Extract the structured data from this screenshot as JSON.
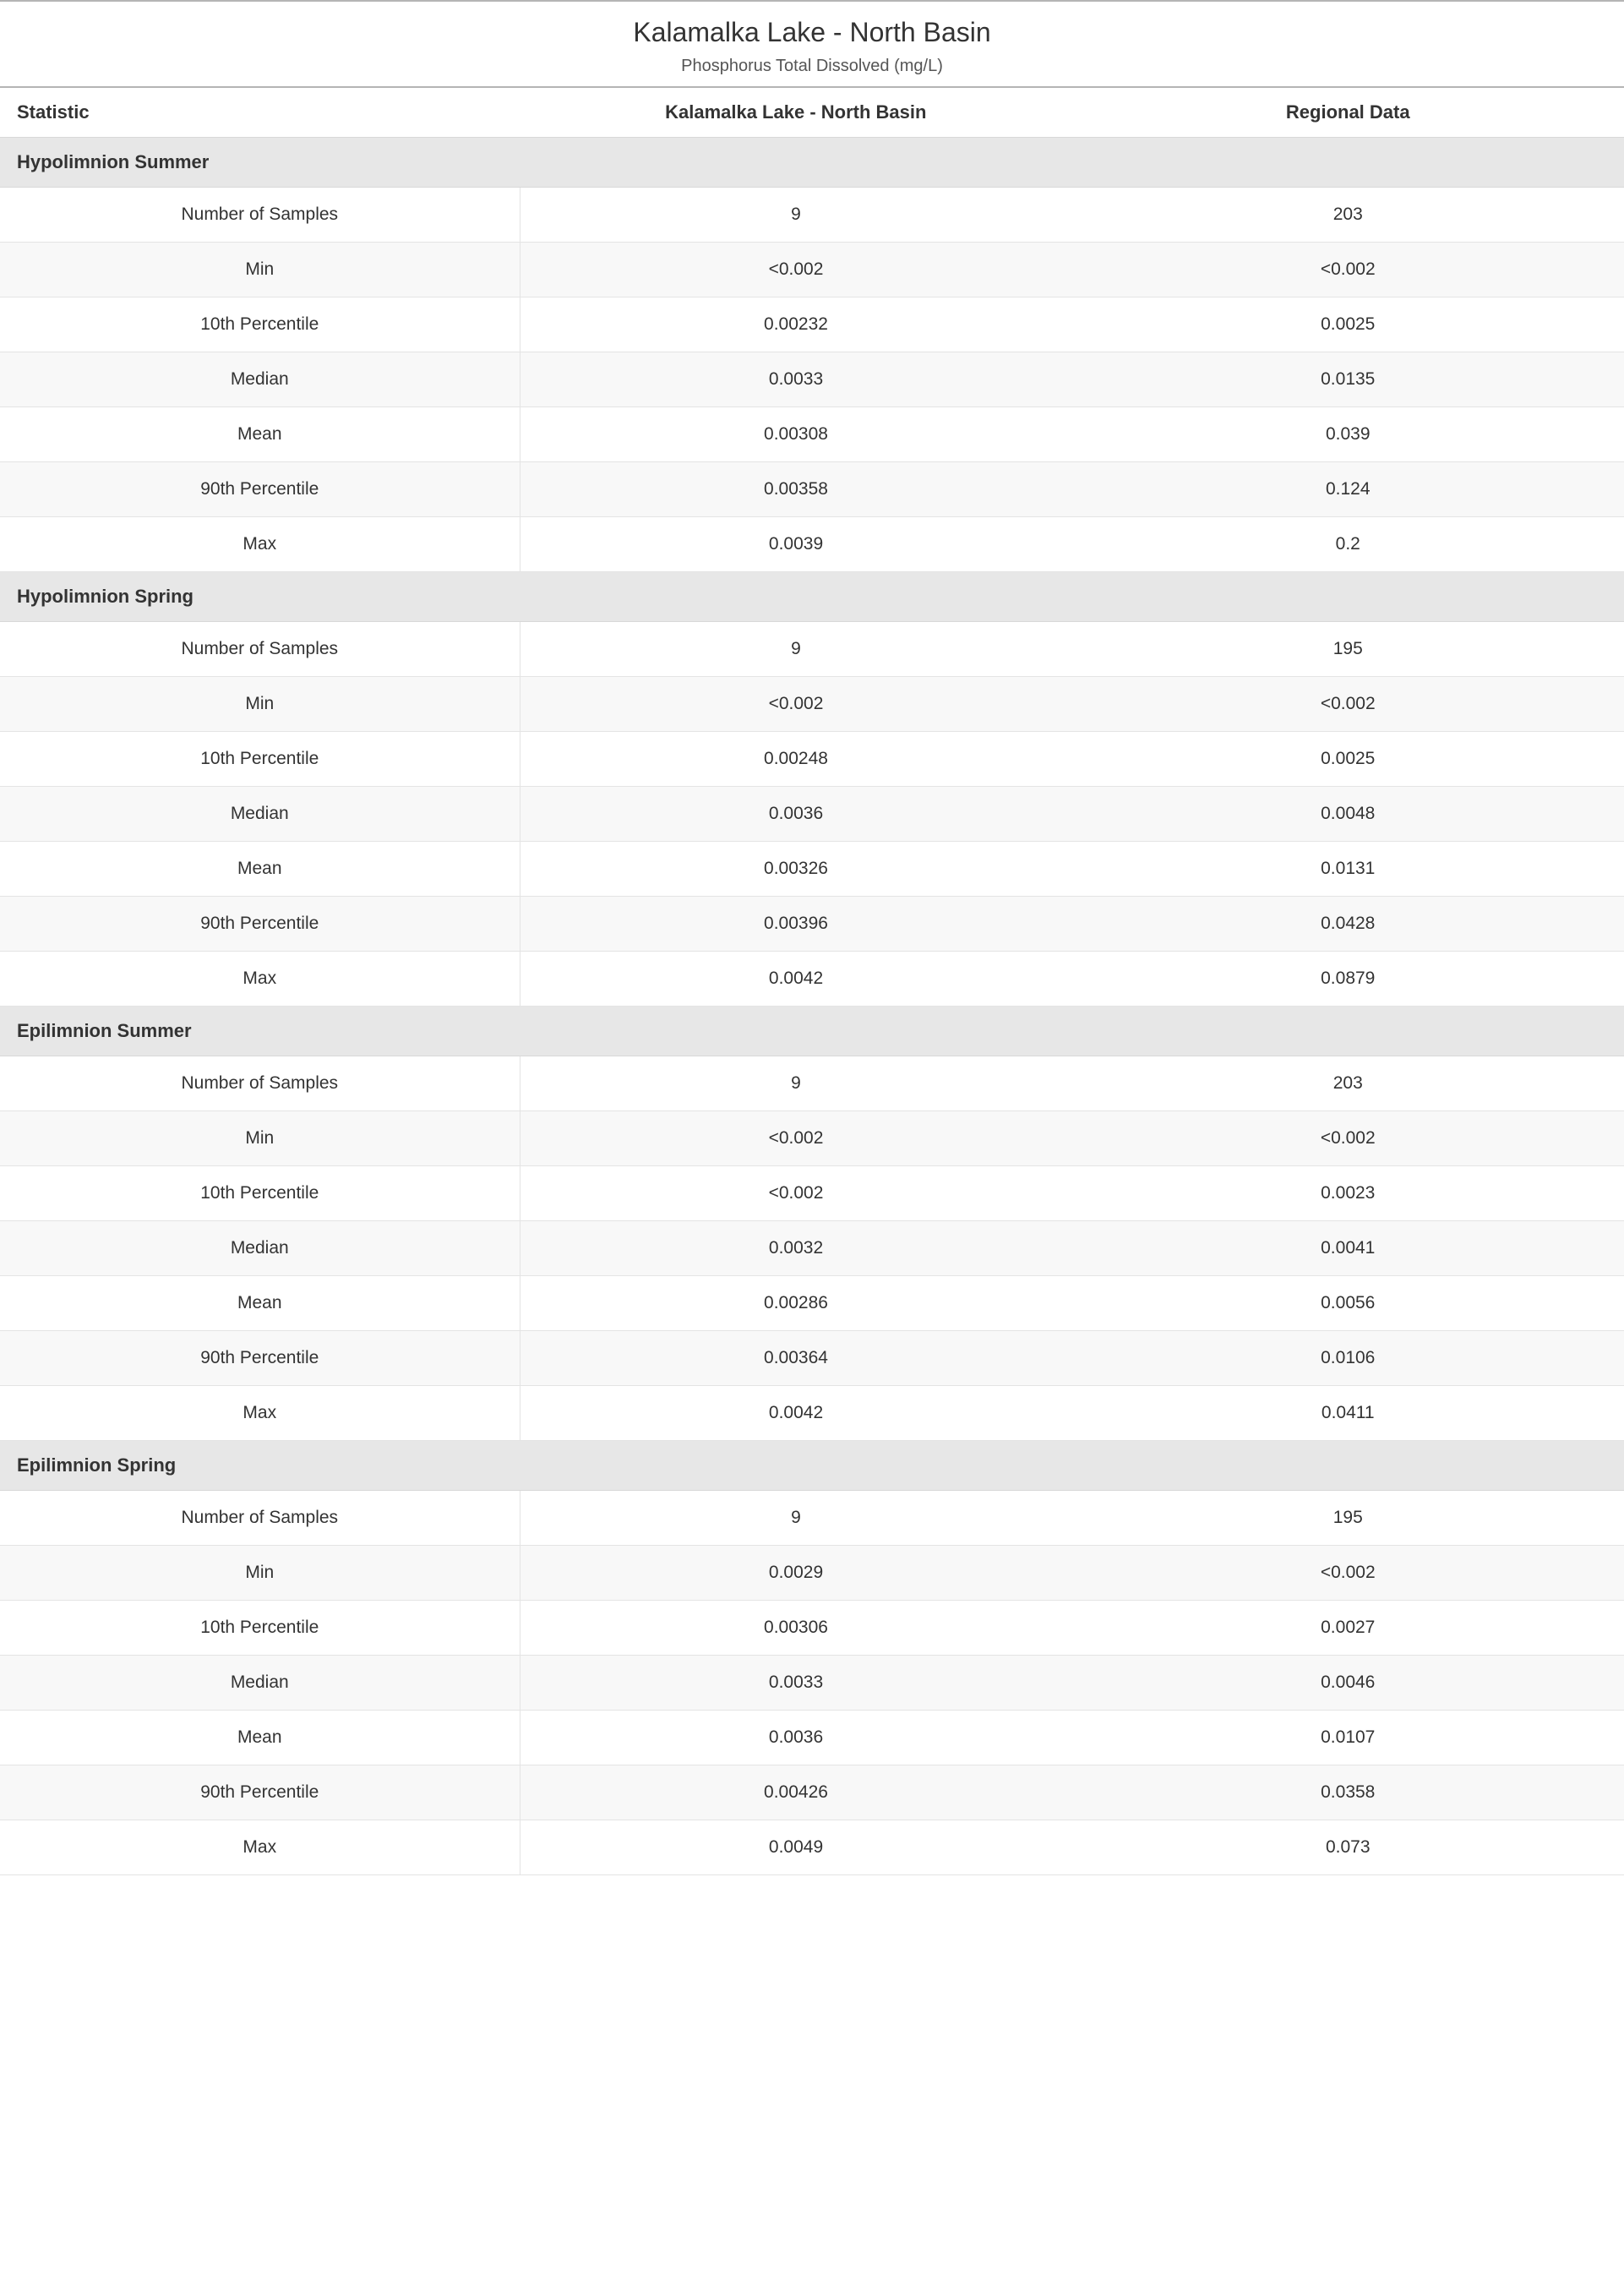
{
  "title": "Kalamalka Lake - North Basin",
  "subtitle": "Phosphorus Total Dissolved (mg/L)",
  "columns": {
    "stat": "Statistic",
    "site": "Kalamalka Lake - North Basin",
    "regional": "Regional Data"
  },
  "stat_labels": [
    "Number of Samples",
    "Min",
    "10th Percentile",
    "Median",
    "Mean",
    "90th Percentile",
    "Max"
  ],
  "sections": [
    {
      "name": "Hypolimnion Summer",
      "rows": [
        {
          "site": "9",
          "regional": "203"
        },
        {
          "site": "<0.002",
          "regional": "<0.002"
        },
        {
          "site": "0.00232",
          "regional": "0.0025"
        },
        {
          "site": "0.0033",
          "regional": "0.0135"
        },
        {
          "site": "0.00308",
          "regional": "0.039"
        },
        {
          "site": "0.00358",
          "regional": "0.124"
        },
        {
          "site": "0.0039",
          "regional": "0.2"
        }
      ]
    },
    {
      "name": "Hypolimnion Spring",
      "rows": [
        {
          "site": "9",
          "regional": "195"
        },
        {
          "site": "<0.002",
          "regional": "<0.002"
        },
        {
          "site": "0.00248",
          "regional": "0.0025"
        },
        {
          "site": "0.0036",
          "regional": "0.0048"
        },
        {
          "site": "0.00326",
          "regional": "0.0131"
        },
        {
          "site": "0.00396",
          "regional": "0.0428"
        },
        {
          "site": "0.0042",
          "regional": "0.0879"
        }
      ]
    },
    {
      "name": "Epilimnion Summer",
      "rows": [
        {
          "site": "9",
          "regional": "203"
        },
        {
          "site": "<0.002",
          "regional": "<0.002"
        },
        {
          "site": "<0.002",
          "regional": "0.0023"
        },
        {
          "site": "0.0032",
          "regional": "0.0041"
        },
        {
          "site": "0.00286",
          "regional": "0.0056"
        },
        {
          "site": "0.00364",
          "regional": "0.0106"
        },
        {
          "site": "0.0042",
          "regional": "0.0411"
        }
      ]
    },
    {
      "name": "Epilimnion Spring",
      "rows": [
        {
          "site": "9",
          "regional": "195"
        },
        {
          "site": "0.0029",
          "regional": "<0.002"
        },
        {
          "site": "0.00306",
          "regional": "0.0027"
        },
        {
          "site": "0.0033",
          "regional": "0.0046"
        },
        {
          "site": "0.0036",
          "regional": "0.0107"
        },
        {
          "site": "0.00426",
          "regional": "0.0358"
        },
        {
          "site": "0.0049",
          "regional": "0.073"
        }
      ]
    }
  ],
  "styles": {
    "header_bg": "#e7e7e7",
    "row_odd_bg": "#ffffff",
    "row_even_bg": "#f8f8f8",
    "border_color": "#d8d8d8",
    "border_strong": "#b5b5b5",
    "title_fontsize": 32,
    "subtitle_fontsize": 20,
    "header_fontsize": 22,
    "cell_fontsize": 21
  }
}
